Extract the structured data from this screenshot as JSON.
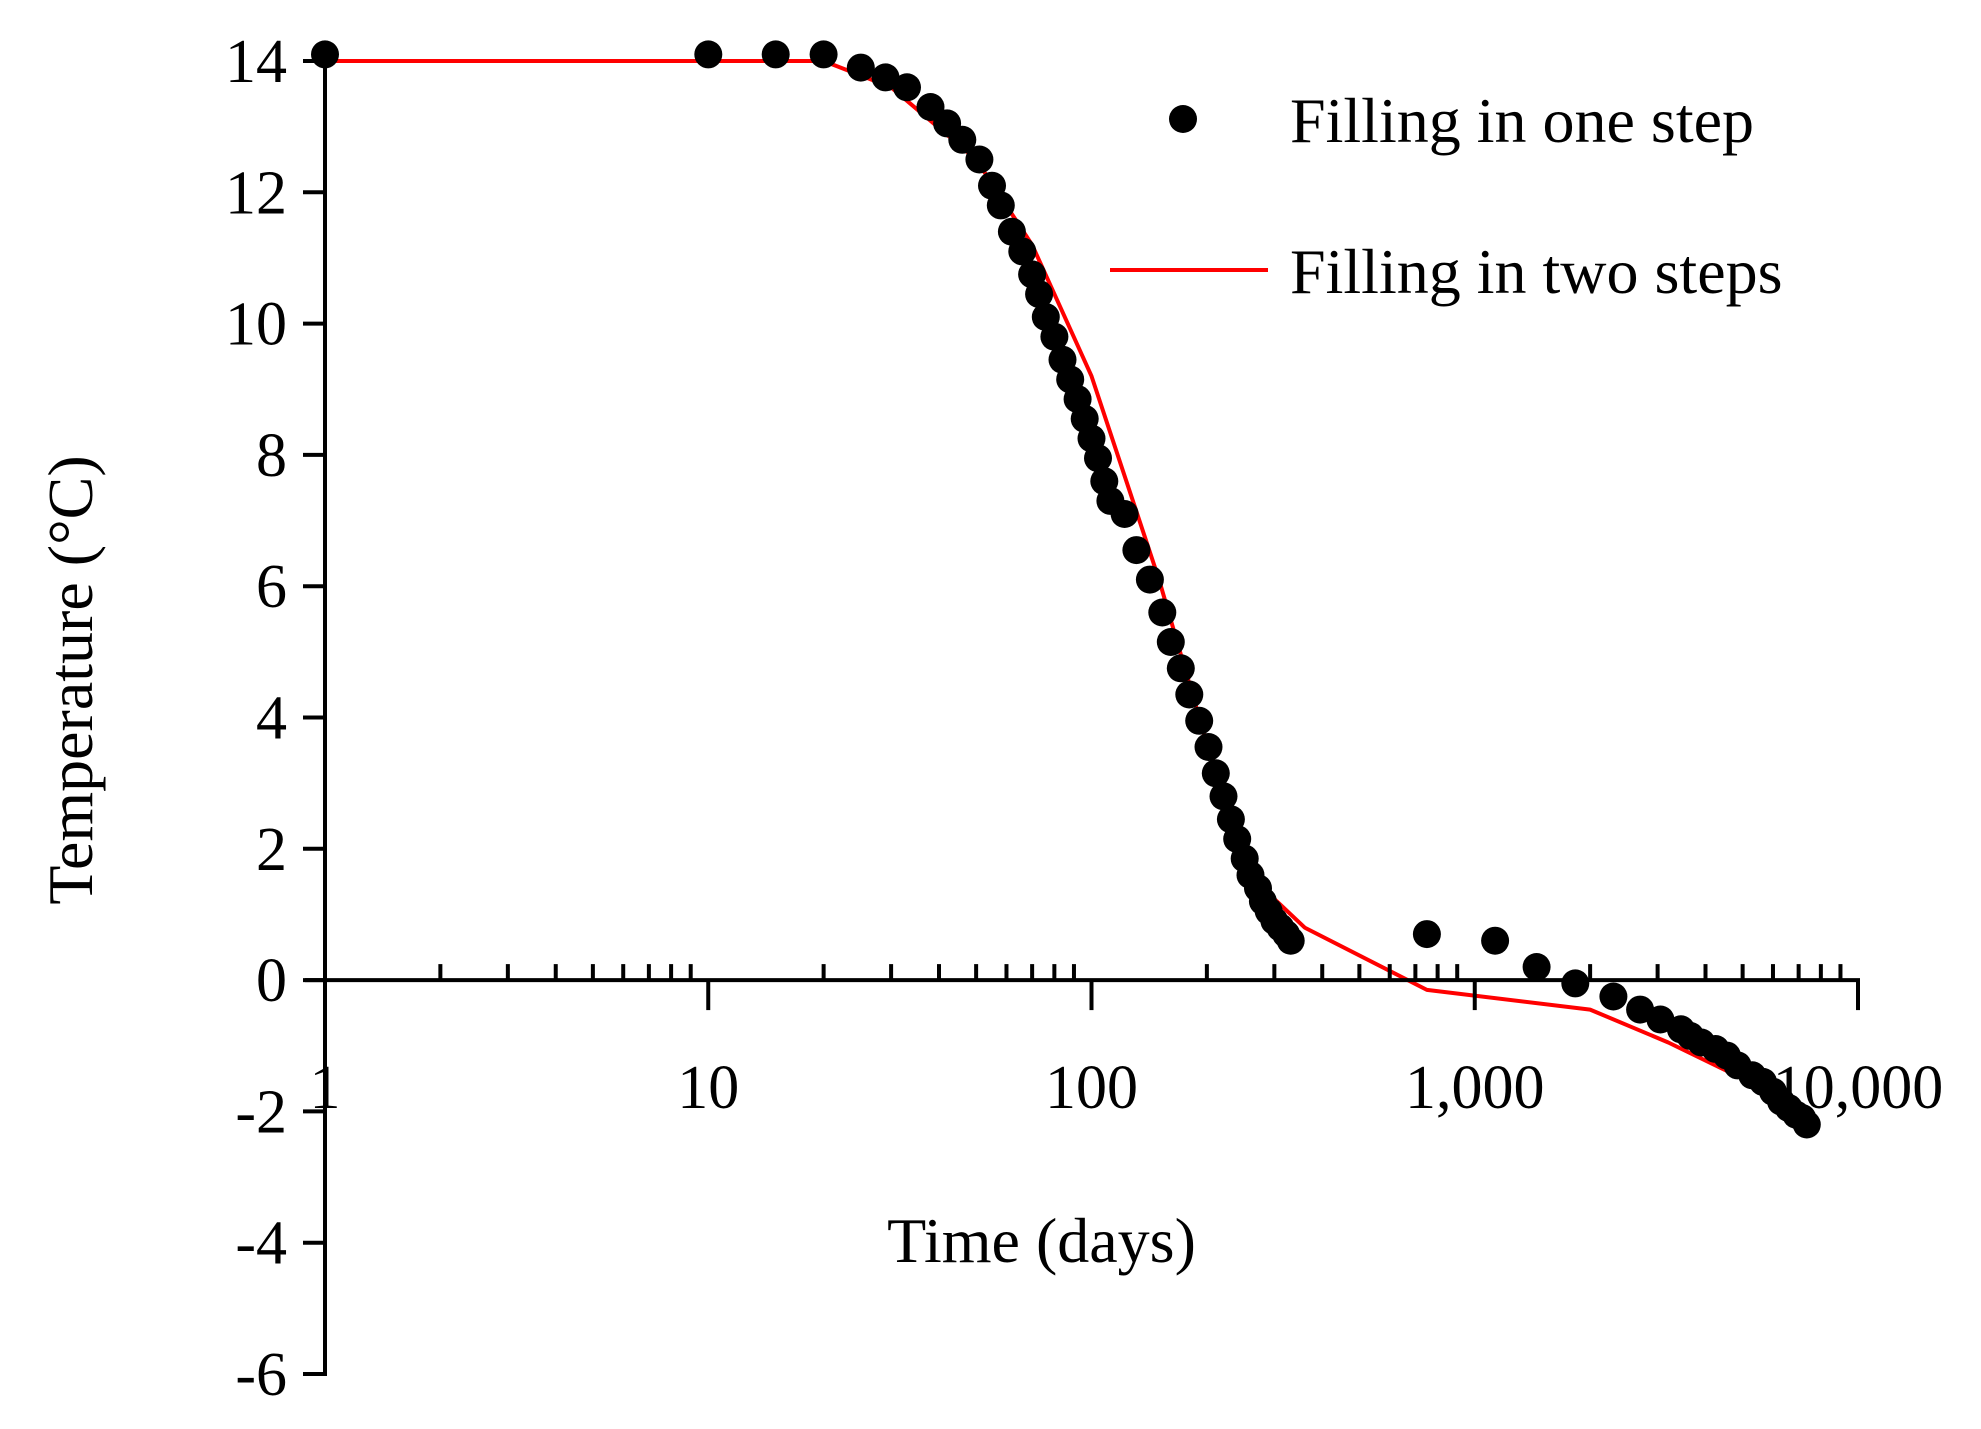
{
  "chart_data": {
    "type": "scatter",
    "x_scale": "log",
    "xlim": [
      1,
      10000
    ],
    "ylim": [
      -6,
      14
    ],
    "xlabel": "Time (days)",
    "ylabel": "Temperature (°C)",
    "x_ticks": [
      1,
      10,
      100,
      1000,
      10000
    ],
    "x_tick_labels": [
      "1",
      "10",
      "100",
      "1,000",
      "10,000"
    ],
    "y_ticks": [
      14,
      12,
      10,
      8,
      6,
      4,
      2,
      0,
      -2,
      -4,
      -6
    ],
    "y_tick_labels": [
      "14",
      "12",
      "10",
      "8",
      "6",
      "4",
      "2",
      "0",
      "-2",
      "-4",
      "-6"
    ],
    "legend_position": "top-right",
    "grid": false,
    "series": [
      {
        "name": "Filling in one step",
        "kind": "markers",
        "color": "#000000",
        "x": [
          1,
          10,
          15,
          20,
          25,
          29,
          33,
          38,
          42,
          46,
          51,
          55,
          58,
          62,
          66,
          70,
          73,
          76,
          80,
          84,
          88,
          92,
          96,
          100,
          104,
          108,
          112,
          122,
          131,
          142,
          153,
          161,
          171,
          180,
          191,
          202,
          211,
          221,
          231,
          240,
          251,
          260,
          272,
          280,
          290,
          300,
          311,
          322,
          331,
          750,
          1130,
          1450,
          1830,
          2300,
          2700,
          3050,
          3450,
          3650,
          3900,
          4250,
          4550,
          4850,
          5300,
          5650,
          6000,
          6300,
          6600,
          6900,
          7150,
          7350
        ],
        "y": [
          14.1,
          14.1,
          14.1,
          14.1,
          13.9,
          13.75,
          13.6,
          13.3,
          13.05,
          12.8,
          12.5,
          12.1,
          11.8,
          11.4,
          11.1,
          10.75,
          10.45,
          10.1,
          9.8,
          9.45,
          9.15,
          8.85,
          8.55,
          8.25,
          7.95,
          7.6,
          7.3,
          7.1,
          6.55,
          6.1,
          5.6,
          5.15,
          4.75,
          4.35,
          3.95,
          3.55,
          3.15,
          2.8,
          2.45,
          2.15,
          1.85,
          1.6,
          1.4,
          1.2,
          1.05,
          0.9,
          0.8,
          0.7,
          0.6,
          0.7,
          0.6,
          0.2,
          -0.05,
          -0.25,
          -0.45,
          -0.6,
          -0.75,
          -0.85,
          -0.95,
          -1.05,
          -1.15,
          -1.3,
          -1.45,
          -1.55,
          -1.7,
          -1.85,
          -1.95,
          -2.05,
          -2.1,
          -2.2
        ]
      },
      {
        "name": "Filling in two steps",
        "kind": "line",
        "color": "#ff0000",
        "x": [
          1,
          20,
          30,
          50,
          70,
          100,
          150,
          200,
          280,
          360,
          750,
          2000,
          3200,
          5000,
          7500
        ],
        "y": [
          14,
          14,
          13.6,
          12.5,
          11.2,
          9.2,
          6.1,
          3.6,
          1.4,
          0.8,
          -0.15,
          -0.45,
          -0.95,
          -1.5,
          -2.3
        ]
      }
    ]
  }
}
